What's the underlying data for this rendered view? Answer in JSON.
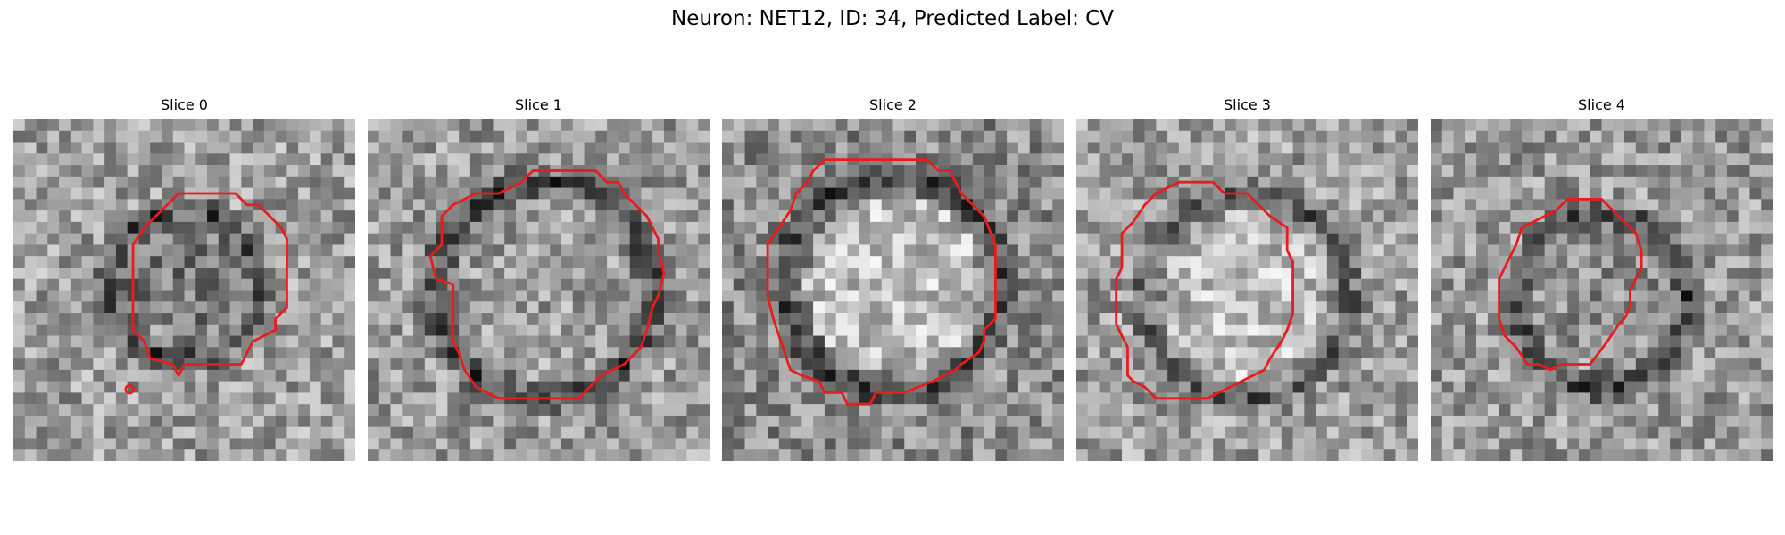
{
  "figure": {
    "title": "Neuron: NET12, ID: 34, Predicted Label: CV"
  },
  "colors": {
    "contour": "#e81c1c"
  },
  "slices": [
    {
      "label": "Slice 0",
      "seed": 11,
      "pattern": "dark-ring-small"
    },
    {
      "label": "Slice 1",
      "seed": 23,
      "pattern": "dark-ring-large"
    },
    {
      "label": "Slice 2",
      "seed": 37,
      "pattern": "bright-disk"
    },
    {
      "label": "Slice 3",
      "seed": 41,
      "pattern": "bright-disk-ring"
    },
    {
      "label": "Slice 4",
      "seed": 59,
      "pattern": "dark-ring-medium"
    }
  ]
}
